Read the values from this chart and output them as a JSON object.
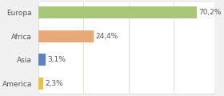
{
  "categories": [
    "America",
    "Asia",
    "Africa",
    "Europa"
  ],
  "values": [
    2.3,
    3.1,
    24.4,
    70.2
  ],
  "bar_colors": [
    "#f0c040",
    "#6080c0",
    "#e8a878",
    "#a8c878"
  ],
  "labels": [
    "2,3%",
    "3,1%",
    "24,4%",
    "70,2%"
  ],
  "background_color": "#f0f0f0",
  "plot_bg_color": "#ffffff",
  "bar_height": 0.5,
  "xlim": [
    0,
    78
  ],
  "label_fontsize": 6.5,
  "tick_fontsize": 6.5,
  "grid_color": "#d0d8c8",
  "label_color": "#555555",
  "tick_color": "#555555"
}
